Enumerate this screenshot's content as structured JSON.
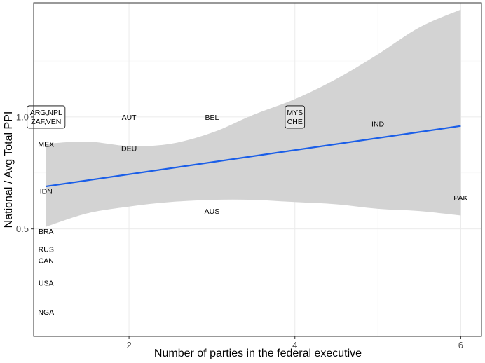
{
  "chart_data": {
    "type": "scatter",
    "xlabel": "Number of parties in the federal executive",
    "ylabel": "National / Avg Total PPI",
    "xlim": [
      0.85,
      6.25
    ],
    "ylim": [
      0.02,
      1.51
    ],
    "x_ticks": [
      2,
      4,
      6
    ],
    "x_tick_labels": [
      "2",
      "4",
      "6"
    ],
    "y_ticks": [
      0.5,
      1.0
    ],
    "y_tick_labels": [
      "0.5",
      "1.0"
    ],
    "grid": true,
    "text_points": [
      {
        "label": "MEX",
        "x": 1,
        "y": 0.88
      },
      {
        "label": "IDN",
        "x": 1,
        "y": 0.67
      },
      {
        "label": "BRA",
        "x": 1,
        "y": 0.49
      },
      {
        "label": "RUS",
        "x": 1,
        "y": 0.41
      },
      {
        "label": "CAN",
        "x": 1,
        "y": 0.36
      },
      {
        "label": "USA",
        "x": 1,
        "y": 0.26
      },
      {
        "label": "NGA",
        "x": 1,
        "y": 0.13
      },
      {
        "label": "AUT",
        "x": 2,
        "y": 1.0
      },
      {
        "label": "DEU",
        "x": 2,
        "y": 0.86
      },
      {
        "label": "BEL",
        "x": 3,
        "y": 1.0
      },
      {
        "label": "AUS",
        "x": 3,
        "y": 0.58
      },
      {
        "label": "IND",
        "x": 5,
        "y": 0.97
      },
      {
        "label": "PAK",
        "x": 6,
        "y": 0.64
      }
    ],
    "boxed_points": [
      {
        "lines": [
          "ARG,NPL",
          "ZAF,VEN"
        ],
        "x": 1,
        "y": 1.0,
        "fill": "#ffffff"
      },
      {
        "lines": [
          "MYS",
          "CHE"
        ],
        "x": 4,
        "y": 1.0,
        "fill": "#e6e6e6"
      }
    ],
    "fit_line": {
      "x": [
        1,
        6
      ],
      "y": [
        0.69,
        0.96
      ],
      "color": "#1a5ee8"
    },
    "confidence_band": {
      "color": "#d3d3d3",
      "x": [
        1,
        1.5,
        2,
        2.5,
        3,
        3.5,
        4,
        4.5,
        5,
        5.5,
        6
      ],
      "upper": [
        0.88,
        0.89,
        0.87,
        0.88,
        0.93,
        1.01,
        1.08,
        1.17,
        1.28,
        1.4,
        1.48
      ],
      "lower": [
        0.51,
        0.57,
        0.6,
        0.62,
        0.63,
        0.63,
        0.62,
        0.61,
        0.59,
        0.58,
        0.56
      ]
    }
  }
}
